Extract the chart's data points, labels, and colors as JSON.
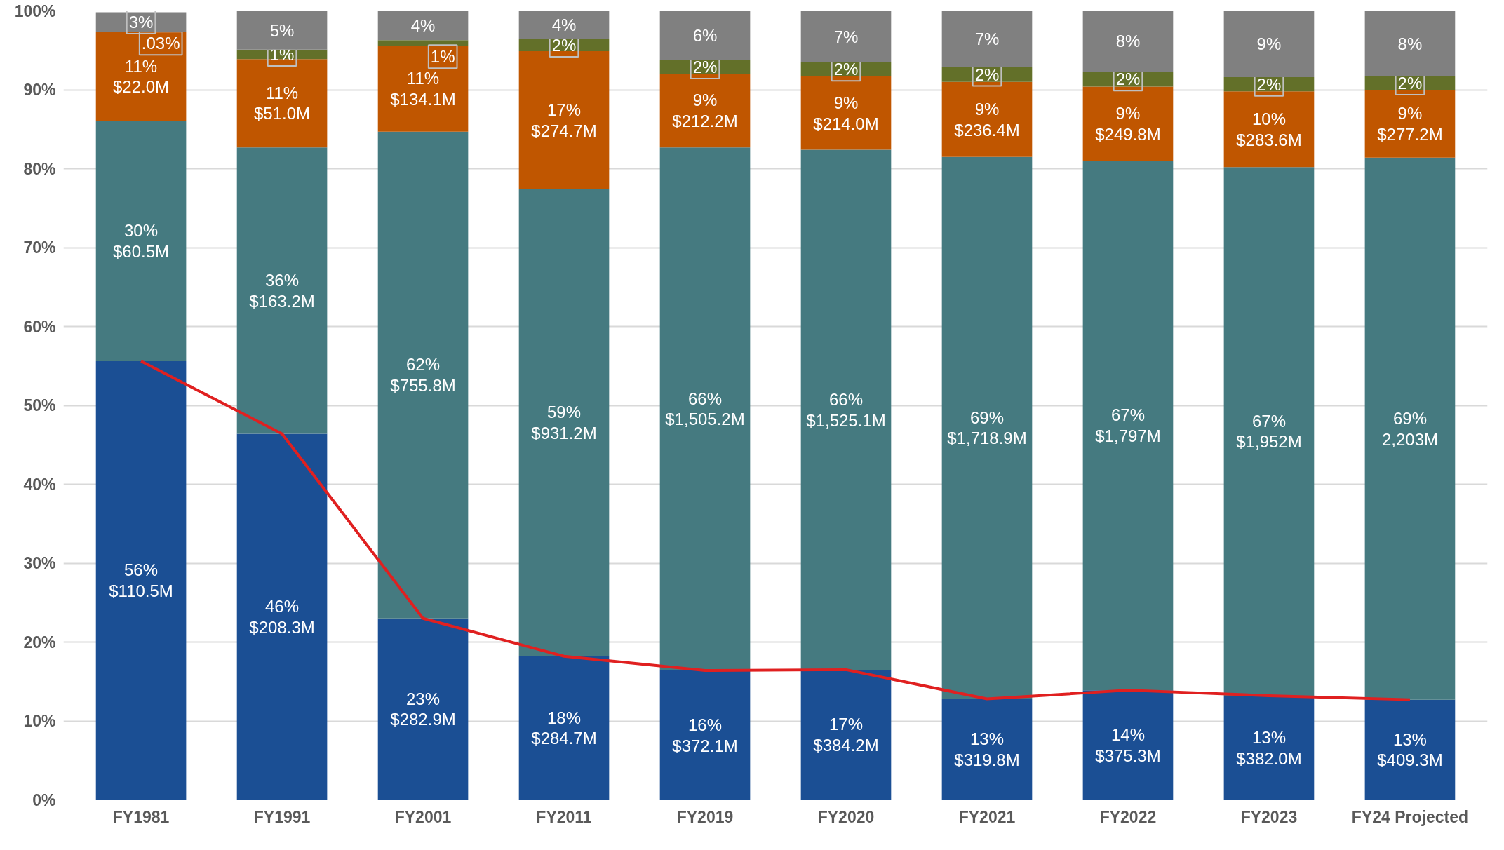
{
  "chart_data": {
    "type": "bar",
    "stacked": true,
    "categories": [
      "FY1981",
      "FY1991",
      "FY2001",
      "FY2011",
      "FY2019",
      "FY2020",
      "FY2021",
      "FY2022",
      "FY2023",
      "FY24 Projected"
    ],
    "ylim": [
      0,
      100
    ],
    "yticks": [
      {
        "value": 0,
        "label": "0%"
      },
      {
        "value": 10,
        "label": "10%"
      },
      {
        "value": 20,
        "label": "20%"
      },
      {
        "value": 30,
        "label": "30%"
      },
      {
        "value": 40,
        "label": "40%"
      },
      {
        "value": 50,
        "label": "50%"
      },
      {
        "value": 60,
        "label": "60%"
      },
      {
        "value": 70,
        "label": "70%"
      },
      {
        "value": 80,
        "label": "80%"
      },
      {
        "value": 90,
        "label": "90%"
      },
      {
        "value": 100,
        "label": "100%"
      }
    ],
    "grid": "y",
    "series": [
      {
        "color": "#1b4f94",
        "values": [
          55.6,
          46.4,
          23.0,
          18.2,
          16.4,
          16.5,
          12.8,
          13.9,
          13.2,
          12.7
        ],
        "value_labels": [
          "56%\n$110.5M",
          "46%\n$208.3M",
          "23%\n$282.9M",
          "18%\n$284.7M",
          "16%\n$372.1M",
          "17%\n$384.2M",
          "13%\n$319.8M",
          "14%\n$375.3M",
          "13%\n$382.0M",
          "13%\n$409.3M"
        ]
      },
      {
        "color": "#457a80",
        "values": [
          30.5,
          36.3,
          61.7,
          59.2,
          66.3,
          65.9,
          68.7,
          67.1,
          67.0,
          68.7
        ],
        "value_labels": [
          "30%\n$60.5M",
          "36%\n$163.2M",
          "62%\n$755.8M",
          "59%\n$931.2M",
          "66%\n$1,505.2M",
          "66%\n$1,525.1M",
          "69%\n$1,718.9M",
          "67%\n$1,797M",
          "67%\n$1,952M",
          "69%\n2,203M"
        ]
      },
      {
        "color": "#c05600",
        "values": [
          11.2,
          11.2,
          10.9,
          17.5,
          9.3,
          9.3,
          9.5,
          9.4,
          9.6,
          8.6
        ],
        "value_labels": [
          "11%\n$22.0M",
          "11%\n$51.0M",
          "11%\n$134.1M",
          "17%\n$274.7M",
          "9%\n$212.2M",
          "9%\n$214.0M",
          "9%\n$236.4M",
          "9%\n$249.8M",
          "10%\n$283.6M",
          "9%\n$277.2M"
        ]
      },
      {
        "color": "#637029",
        "values": [
          0.03,
          1.2,
          0.7,
          1.5,
          1.8,
          1.8,
          1.9,
          1.9,
          1.8,
          1.7
        ],
        "value_labels": [
          ".03%",
          "1%",
          "1%",
          "2%",
          "2%",
          "2%",
          "2%",
          "2%",
          "2%",
          "2%"
        ]
      },
      {
        "color": "#808080",
        "values": [
          2.5,
          4.9,
          3.7,
          3.6,
          6.2,
          6.5,
          7.1,
          7.7,
          8.5,
          8.3
        ],
        "value_labels": [
          "3%",
          "5%",
          "4%",
          "4%",
          "6%",
          "7%",
          "7%",
          "8%",
          "9%",
          "8%"
        ]
      },
      {
        "type": "line",
        "color": "#e02020",
        "values": [
          55.6,
          46.4,
          23.0,
          18.2,
          16.4,
          16.5,
          12.8,
          13.9,
          13.2,
          12.7
        ]
      }
    ]
  }
}
